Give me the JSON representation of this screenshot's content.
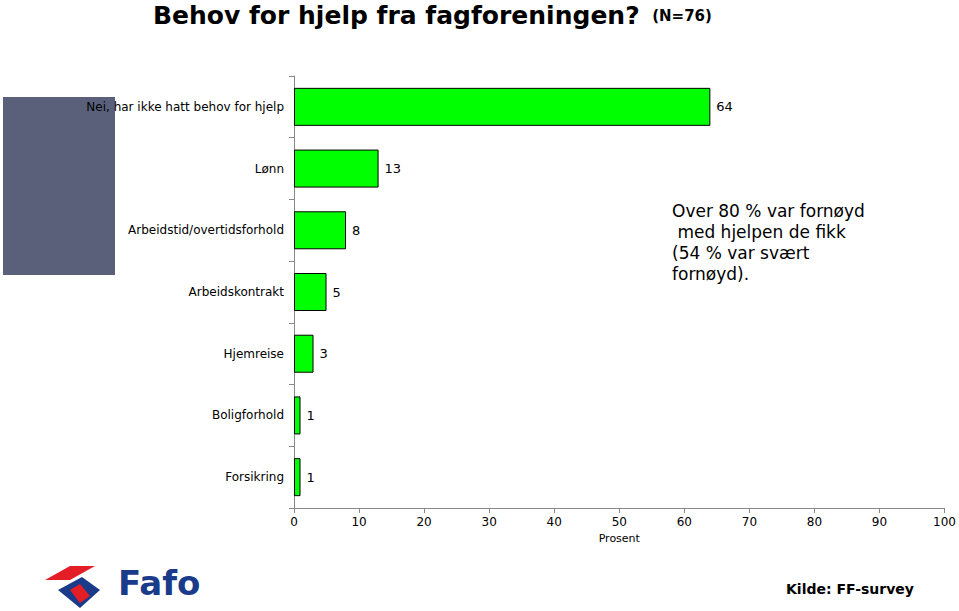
{
  "chart_data": {
    "type": "bar",
    "orientation": "horizontal",
    "title": "Behov for hjelp fra fagforeningen?",
    "subtitle": "(N=76)",
    "categories": [
      "Nei, har ikke hatt behov for hjelp",
      "Lønn",
      "Arbeidstid/overtidsforhold",
      "Arbeidskontrakt",
      "Hjemreise",
      "Boligforhold",
      "Forsikring"
    ],
    "values": [
      64,
      13,
      8,
      5,
      3,
      1,
      1
    ],
    "color": "#00ff00",
    "xlabel": "Prosent",
    "xlim": [
      0,
      100
    ],
    "xticks": [
      0,
      10,
      20,
      30,
      40,
      50,
      60,
      70,
      80,
      90,
      100
    ],
    "grid": false,
    "data_labels": true,
    "annotation": "Over 80 % var fornøyd med hjelpen de fikk (54 % var svært fornøyd).",
    "source": "Kilde: FF-survey",
    "logo": "Fafo"
  }
}
